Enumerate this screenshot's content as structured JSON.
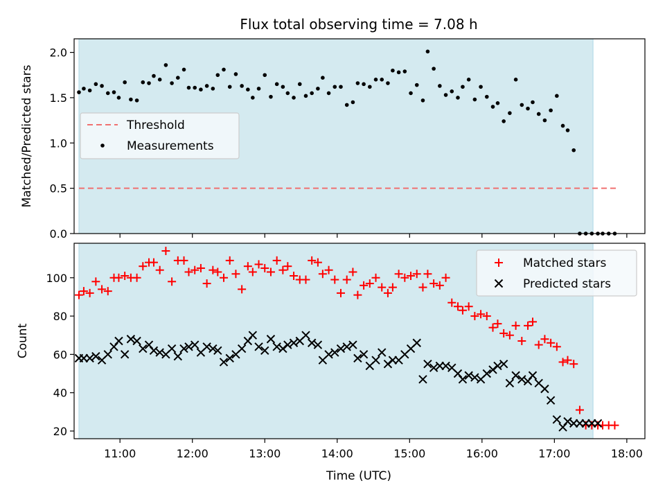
{
  "figure_title": "Flux total observing time = 7.08 h",
  "chart_data": [
    {
      "type": "scatter",
      "panel": "top",
      "ylabel": "Matched/Predicted stars",
      "xlim": [
        "10:22",
        "18:15"
      ],
      "ylim": [
        0,
        2.15
      ],
      "yticks": [
        0.0,
        0.5,
        1.0,
        1.5,
        2.0
      ],
      "ytick_labels": [
        "0.0",
        "0.5",
        "1.0",
        "1.5",
        "2.0"
      ],
      "observing_window": {
        "start": "10:26",
        "end": "17:32",
        "color": "#d4eaf0"
      },
      "grid": false,
      "legend_position": "center-left",
      "threshold": {
        "name": "Threshold",
        "value": 0.5,
        "x_start": "10:26",
        "x_end": "17:53",
        "color": "#f07070"
      },
      "series": [
        {
          "name": "Measurements",
          "color": "#000000",
          "marker": "dot",
          "x": [
            "10:26",
            "10:30",
            "10:35",
            "10:40",
            "10:45",
            "10:50",
            "10:55",
            "10:59",
            "11:04",
            "11:09",
            "11:14",
            "11:19",
            "11:24",
            "11:28",
            "11:33",
            "11:38",
            "11:43",
            "11:48",
            "11:53",
            "11:57",
            "12:02",
            "12:07",
            "12:12",
            "12:17",
            "12:21",
            "12:26",
            "12:31",
            "12:36",
            "12:41",
            "12:46",
            "12:50",
            "12:55",
            "13:00",
            "13:05",
            "13:10",
            "13:15",
            "13:19",
            "13:24",
            "13:29",
            "13:34",
            "13:39",
            "13:44",
            "13:48",
            "13:53",
            "13:58",
            "14:03",
            "14:08",
            "14:13",
            "14:17",
            "14:22",
            "14:27",
            "14:32",
            "14:37",
            "14:42",
            "14:46",
            "14:51",
            "14:56",
            "15:01",
            "15:06",
            "15:11",
            "15:15",
            "15:20",
            "15:25",
            "15:30",
            "15:35",
            "15:40",
            "15:44",
            "15:49",
            "15:54",
            "15:59",
            "16:04",
            "16:09",
            "16:13",
            "16:18",
            "16:23",
            "16:28",
            "16:33",
            "16:38",
            "16:42",
            "16:47",
            "16:52",
            "16:57",
            "17:02",
            "17:07",
            "17:11",
            "17:16",
            "17:21",
            "17:26",
            "17:31",
            "17:36",
            "17:40",
            "17:45",
            "17:50"
          ],
          "y": [
            1.56,
            1.6,
            1.58,
            1.65,
            1.63,
            1.55,
            1.56,
            1.5,
            1.67,
            1.48,
            1.47,
            1.67,
            1.66,
            1.74,
            1.7,
            1.86,
            1.66,
            1.72,
            1.81,
            1.61,
            1.61,
            1.59,
            1.63,
            1.6,
            1.75,
            1.81,
            1.62,
            1.76,
            1.63,
            1.59,
            1.5,
            1.6,
            1.75,
            1.51,
            1.65,
            1.62,
            1.55,
            1.5,
            1.65,
            1.52,
            1.55,
            1.6,
            1.72,
            1.55,
            1.62,
            1.62,
            1.42,
            1.45,
            1.66,
            1.65,
            1.62,
            1.7,
            1.7,
            1.66,
            1.8,
            1.78,
            1.79,
            1.55,
            1.64,
            1.47,
            2.01,
            1.82,
            1.63,
            1.53,
            1.57,
            1.5,
            1.62,
            1.7,
            1.48,
            1.62,
            1.51,
            1.4,
            1.44,
            1.24,
            1.33,
            1.7,
            1.42,
            1.38,
            1.45,
            1.32,
            1.25,
            1.36,
            1.52,
            1.19,
            1.14,
            0.92,
            0.0,
            0.0,
            0.0,
            0.0,
            0.0,
            0.0,
            0.0
          ]
        }
      ]
    },
    {
      "type": "scatter",
      "panel": "bottom",
      "xlabel": "Time (UTC)",
      "ylabel": "Count",
      "xlim": [
        "10:22",
        "18:15"
      ],
      "ylim": [
        16,
        118
      ],
      "xticks": [
        "11:00",
        "12:00",
        "13:00",
        "14:00",
        "15:00",
        "16:00",
        "17:00",
        "18:00"
      ],
      "yticks": [
        20,
        40,
        60,
        80,
        100
      ],
      "observing_window": {
        "start": "10:26",
        "end": "17:32",
        "color": "#d4eaf0"
      },
      "grid": false,
      "legend_position": "upper-right",
      "series": [
        {
          "name": "Matched stars",
          "color": "#ff0000",
          "marker": "plus",
          "x": [
            "10:26",
            "10:30",
            "10:35",
            "10:40",
            "10:45",
            "10:50",
            "10:55",
            "10:59",
            "11:04",
            "11:09",
            "11:14",
            "11:19",
            "11:24",
            "11:28",
            "11:33",
            "11:38",
            "11:43",
            "11:48",
            "11:53",
            "11:57",
            "12:02",
            "12:07",
            "12:12",
            "12:17",
            "12:21",
            "12:26",
            "12:31",
            "12:36",
            "12:41",
            "12:46",
            "12:50",
            "12:55",
            "13:00",
            "13:05",
            "13:10",
            "13:15",
            "13:19",
            "13:24",
            "13:29",
            "13:34",
            "13:39",
            "13:44",
            "13:48",
            "13:53",
            "13:58",
            "14:03",
            "14:08",
            "14:13",
            "14:17",
            "14:22",
            "14:27",
            "14:32",
            "14:37",
            "14:42",
            "14:46",
            "14:51",
            "14:56",
            "15:01",
            "15:06",
            "15:11",
            "15:15",
            "15:20",
            "15:25",
            "15:30",
            "15:35",
            "15:40",
            "15:44",
            "15:49",
            "15:54",
            "15:59",
            "16:04",
            "16:09",
            "16:13",
            "16:18",
            "16:23",
            "16:28",
            "16:33",
            "16:38",
            "16:42",
            "16:47",
            "16:52",
            "16:57",
            "17:02",
            "17:07",
            "17:11",
            "17:16",
            "17:21",
            "17:26",
            "17:31",
            "17:36",
            "17:40",
            "17:45",
            "17:50"
          ],
          "y": [
            91,
            93,
            92,
            98,
            94,
            93,
            100,
            100,
            101,
            100,
            100,
            106,
            108,
            108,
            104,
            114,
            98,
            109,
            109,
            103,
            104,
            105,
            97,
            104,
            103,
            100,
            109,
            102,
            94,
            106,
            103,
            107,
            105,
            103,
            109,
            104,
            106,
            101,
            99,
            99,
            109,
            108,
            102,
            104,
            99,
            92,
            99,
            103,
            91,
            96,
            97,
            100,
            95,
            92,
            95,
            102,
            100,
            101,
            102,
            95,
            102,
            97,
            96,
            100,
            87,
            85,
            83,
            85,
            80,
            81,
            80,
            74,
            76,
            71,
            70,
            75,
            67,
            75,
            77,
            65,
            68,
            66,
            64,
            56,
            57,
            55,
            31,
            23,
            23,
            23,
            23,
            23,
            23
          ]
        },
        {
          "name": "Predicted stars",
          "color": "#000000",
          "marker": "x",
          "x": [
            "10:26",
            "10:30",
            "10:35",
            "10:40",
            "10:45",
            "10:50",
            "10:55",
            "10:59",
            "11:04",
            "11:09",
            "11:14",
            "11:19",
            "11:24",
            "11:28",
            "11:33",
            "11:38",
            "11:43",
            "11:48",
            "11:53",
            "11:57",
            "12:02",
            "12:07",
            "12:12",
            "12:17",
            "12:21",
            "12:26",
            "12:31",
            "12:36",
            "12:41",
            "12:46",
            "12:50",
            "12:55",
            "13:00",
            "13:05",
            "13:10",
            "13:15",
            "13:19",
            "13:24",
            "13:29",
            "13:34",
            "13:39",
            "13:44",
            "13:48",
            "13:53",
            "13:58",
            "14:03",
            "14:08",
            "14:13",
            "14:17",
            "14:22",
            "14:27",
            "14:32",
            "14:37",
            "14:42",
            "14:46",
            "14:51",
            "14:56",
            "15:01",
            "15:06",
            "15:11",
            "15:15",
            "15:20",
            "15:25",
            "15:30",
            "15:35",
            "15:40",
            "15:44",
            "15:49",
            "15:54",
            "15:59",
            "16:04",
            "16:09",
            "16:13",
            "16:18",
            "16:23",
            "16:28",
            "16:33",
            "16:38",
            "16:42",
            "16:47",
            "16:52",
            "16:57",
            "17:02",
            "17:07",
            "17:11",
            "17:16",
            "17:21",
            "17:26",
            "17:31",
            "17:36"
          ],
          "y": [
            58,
            58,
            58,
            59,
            57,
            60,
            64,
            67,
            60,
            68,
            67,
            63,
            65,
            62,
            61,
            60,
            63,
            59,
            63,
            64,
            65,
            61,
            64,
            63,
            62,
            56,
            58,
            60,
            63,
            67,
            70,
            64,
            62,
            68,
            64,
            63,
            65,
            66,
            67,
            70,
            66,
            65,
            57,
            60,
            61,
            63,
            64,
            65,
            58,
            60,
            54,
            57,
            61,
            55,
            57,
            57,
            60,
            63,
            66,
            47,
            55,
            53,
            54,
            54,
            53,
            50,
            47,
            49,
            48,
            47,
            50,
            52,
            54,
            55,
            45,
            49,
            47,
            46,
            49,
            45,
            42,
            36,
            26,
            22,
            25,
            24,
            24,
            24,
            24,
            24
          ]
        }
      ]
    }
  ]
}
